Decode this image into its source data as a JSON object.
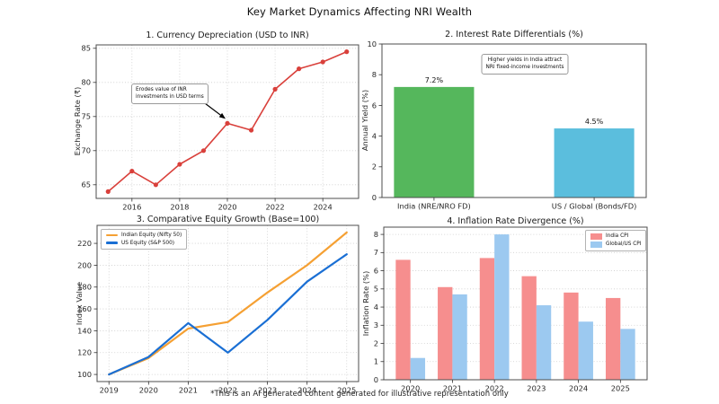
{
  "figure": {
    "title": "Key Market Dynamics Affecting NRI Wealth",
    "footer": "*This is an AI generated content generated for illustrative representation only"
  },
  "chart_data": [
    {
      "type": "line",
      "title": "1. Currency Depreciation (USD to INR)",
      "ylabel": "Exchange Rate (₹)",
      "x": [
        2015,
        2016,
        2017,
        2018,
        2019,
        2020,
        2021,
        2022,
        2023,
        2024,
        2025
      ],
      "series": [
        {
          "name": "USD to INR exchange rate",
          "color": "#d9403b",
          "marker": true,
          "width": 1.6,
          "values": [
            64,
            67,
            65,
            68,
            70,
            74,
            73,
            79,
            82,
            83,
            84.5
          ]
        }
      ],
      "xlim": [
        2014.5,
        2025.5
      ],
      "ylim": [
        63,
        85.5
      ],
      "xticks": [
        2016,
        2018,
        2020,
        2022,
        2024
      ],
      "yticks": [
        65,
        70,
        75,
        80,
        85
      ],
      "grid": "both",
      "annotation": {
        "text": "Erodes value of INR\ninvestments in USD terms",
        "target": [
          2020,
          74
        ]
      }
    },
    {
      "type": "bar",
      "title": "2. Interest Rate Differentials (%)",
      "ylabel": "Annual Yield (%)",
      "categories": [
        "India (NRE/NRO FD)",
        "US / Global (Bonds/FD)"
      ],
      "values": [
        7.2,
        4.5
      ],
      "value_labels": [
        "7.2%",
        "4.5%"
      ],
      "bar_colors": [
        "#55b75c",
        "#5bbedd"
      ],
      "ylim": [
        0,
        10
      ],
      "yticks": [
        0,
        2,
        4,
        6,
        8,
        10
      ],
      "grid": "none",
      "annotation": {
        "text": "Higher yields in India attract\nNRI fixed-income investments"
      }
    },
    {
      "type": "line",
      "title": "3. Comparative Equity Growth (Base=100)",
      "ylabel": "Index Value",
      "x": [
        2019,
        2020,
        2021,
        2022,
        2023,
        2024,
        2025
      ],
      "series": [
        {
          "name": "Indian Equity (Nifty 50)",
          "color": "#f5a033",
          "marker": false,
          "width": 2.2,
          "values": [
            100,
            115,
            142,
            148,
            175,
            200,
            230
          ]
        },
        {
          "name": "US Equity (S&P 500)",
          "color": "#1a6fd4",
          "marker": false,
          "width": 2.2,
          "values": [
            100,
            116,
            147,
            120,
            150,
            185,
            210
          ]
        }
      ],
      "xlim": [
        2018.7,
        2025.3
      ],
      "ylim": [
        93.5,
        236.5
      ],
      "xticks": [
        2019,
        2020,
        2021,
        2022,
        2023,
        2024,
        2025
      ],
      "yticks": [
        100,
        120,
        140,
        160,
        180,
        200,
        220
      ],
      "grid": "both",
      "legend_position": "upper-left"
    },
    {
      "type": "grouped-bar",
      "title": "4. Inflation Rate Divergence (%)",
      "ylabel": "Inflation Rate (%)",
      "categories": [
        "2020",
        "2021",
        "2022",
        "2023",
        "2024",
        "2025"
      ],
      "series": [
        {
          "name": "India CPI",
          "color": "#f68e8e",
          "values": [
            6.6,
            5.1,
            6.7,
            5.7,
            4.8,
            4.5
          ]
        },
        {
          "name": "Global/US CPI",
          "color": "#9cc9f0",
          "values": [
            1.2,
            4.7,
            8.0,
            4.1,
            3.2,
            2.8
          ]
        }
      ],
      "ylim": [
        0,
        8.4
      ],
      "yticks": [
        0,
        1,
        2,
        3,
        4,
        5,
        6,
        7,
        8
      ],
      "grid": "y",
      "legend_position": "upper-right"
    }
  ]
}
